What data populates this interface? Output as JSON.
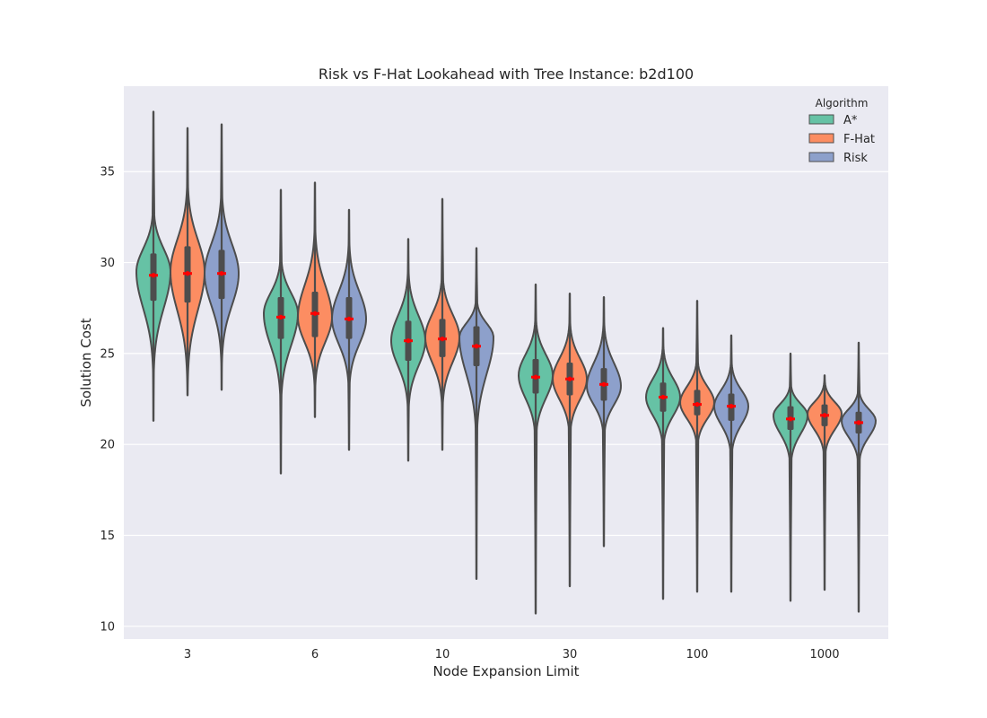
{
  "chart_data": {
    "type": "violin",
    "title": "Risk vs F-Hat Lookahead with Tree Instance: b2d100",
    "xlabel": "Node Expansion Limit",
    "ylabel": "Solution Cost",
    "categories": [
      "3",
      "6",
      "10",
      "30",
      "100",
      "1000"
    ],
    "ylim": [
      9.3,
      39.7
    ],
    "yticks": [
      10,
      15,
      20,
      25,
      30,
      35
    ],
    "grid": true,
    "legend": {
      "title": "Algorithm",
      "position": "top-right"
    },
    "series": [
      {
        "name": "A*",
        "color": "#66c2a5",
        "groups": [
          {
            "min": 21.3,
            "q1": 27.9,
            "median": 29.5,
            "mean": 29.3,
            "q3": 30.5,
            "max": 38.3,
            "mode": 29.5
          },
          {
            "min": 18.4,
            "q1": 25.8,
            "median": 27.0,
            "mean": 27.0,
            "q3": 28.1,
            "max": 34.0,
            "mode": 27.2
          },
          {
            "min": 19.1,
            "q1": 24.6,
            "median": 25.7,
            "mean": 25.7,
            "q3": 26.8,
            "max": 31.3,
            "mode": 25.7
          },
          {
            "min": 10.7,
            "q1": 22.8,
            "median": 23.8,
            "mean": 23.7,
            "q3": 24.7,
            "max": 28.8,
            "mode": 23.8
          },
          {
            "min": 11.5,
            "q1": 21.8,
            "median": 22.7,
            "mean": 22.6,
            "q3": 23.4,
            "max": 26.4,
            "mode": 22.6
          },
          {
            "min": 11.4,
            "q1": 20.8,
            "median": 21.5,
            "mean": 21.4,
            "q3": 22.1,
            "max": 25.0,
            "mode": 21.6
          }
        ]
      },
      {
        "name": "F-Hat",
        "color": "#fc8d62",
        "groups": [
          {
            "min": 22.7,
            "q1": 27.8,
            "median": 29.5,
            "mean": 29.4,
            "q3": 30.9,
            "max": 37.4,
            "mode": 29.5
          },
          {
            "min": 21.5,
            "q1": 25.9,
            "median": 27.3,
            "mean": 27.2,
            "q3": 28.4,
            "max": 34.4,
            "mode": 27.0
          },
          {
            "min": 19.7,
            "q1": 24.8,
            "median": 25.9,
            "mean": 25.8,
            "q3": 26.9,
            "max": 33.5,
            "mode": 25.9
          },
          {
            "min": 12.2,
            "q1": 22.7,
            "median": 23.6,
            "mean": 23.6,
            "q3": 24.5,
            "max": 28.3,
            "mode": 23.6
          },
          {
            "min": 11.9,
            "q1": 21.6,
            "median": 22.3,
            "mean": 22.2,
            "q3": 23.0,
            "max": 27.9,
            "mode": 22.3
          },
          {
            "min": 12.0,
            "q1": 21.0,
            "median": 21.7,
            "mean": 21.6,
            "q3": 22.2,
            "max": 23.8,
            "mode": 21.7
          }
        ]
      },
      {
        "name": "Risk",
        "color": "#8da0cb",
        "groups": [
          {
            "min": 23.0,
            "q1": 28.0,
            "median": 29.4,
            "mean": 29.4,
            "q3": 30.7,
            "max": 37.6,
            "mode": 29.4
          },
          {
            "min": 19.7,
            "q1": 25.8,
            "median": 26.9,
            "mean": 26.9,
            "q3": 28.1,
            "max": 32.9,
            "mode": 26.9
          },
          {
            "min": 12.6,
            "q1": 24.3,
            "median": 25.5,
            "mean": 25.4,
            "q3": 26.5,
            "max": 30.8,
            "mode": 25.9
          },
          {
            "min": 14.4,
            "q1": 22.4,
            "median": 23.3,
            "mean": 23.3,
            "q3": 24.2,
            "max": 28.1,
            "mode": 23.2
          },
          {
            "min": 11.9,
            "q1": 21.3,
            "median": 22.1,
            "mean": 22.1,
            "q3": 22.8,
            "max": 26.0,
            "mode": 22.1
          },
          {
            "min": 10.8,
            "q1": 20.6,
            "median": 21.3,
            "mean": 21.2,
            "q3": 21.8,
            "max": 25.6,
            "mode": 21.3
          }
        ]
      }
    ]
  }
}
